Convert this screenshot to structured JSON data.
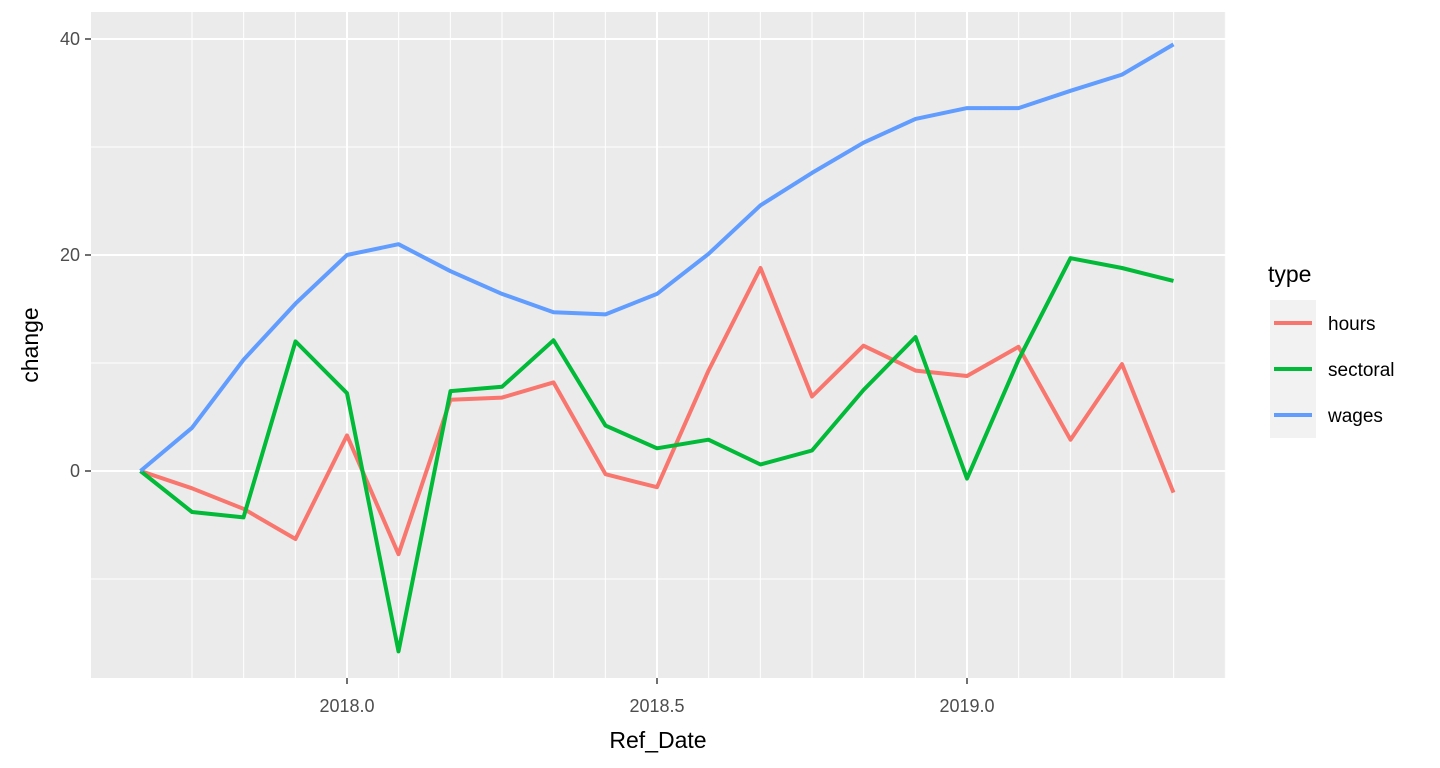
{
  "chart_data": {
    "type": "line",
    "xlabel": "Ref_Date",
    "ylabel": "change",
    "xlim": [
      17.62,
      19.43
    ],
    "ylim": [
      -19,
      43
    ],
    "xticks": [
      2018.0,
      2018.5,
      2019.0
    ],
    "xtick_labels": [
      "2018.0",
      "2018.5",
      "2019.0"
    ],
    "yticks": [
      0,
      20,
      40
    ],
    "ytick_labels": [
      "0",
      "20",
      "40"
    ],
    "grid": true,
    "background": "#ebebeb",
    "legend": {
      "title": "type",
      "position": "right",
      "entries": [
        "hours",
        "sectoral",
        "wages"
      ]
    },
    "x": [
      2017.667,
      2017.75,
      2017.833,
      2017.917,
      2018.0,
      2018.083,
      2018.167,
      2018.25,
      2018.333,
      2018.417,
      2018.5,
      2018.583,
      2018.667,
      2018.75,
      2018.833,
      2018.917,
      2019.0,
      2019.083,
      2019.167,
      2019.25,
      2019.333
    ],
    "series": [
      {
        "name": "hours",
        "color": "#f8766d",
        "values": [
          0,
          -1.6,
          -3.5,
          -6.3,
          3.3,
          -7.7,
          6.6,
          6.8,
          8.2,
          -0.3,
          -1.5,
          9.3,
          18.8,
          6.9,
          11.6,
          9.3,
          8.8,
          11.5,
          2.9,
          9.9,
          -2.0
        ]
      },
      {
        "name": "sectoral",
        "color": "#00ba38",
        "values": [
          0,
          -3.8,
          -4.3,
          12.0,
          7.2,
          -16.7,
          7.4,
          7.8,
          12.1,
          4.2,
          2.1,
          2.9,
          0.6,
          1.9,
          7.5,
          12.4,
          -0.7,
          10.3,
          19.7,
          18.8,
          17.6
        ]
      },
      {
        "name": "wages",
        "color": "#619cff",
        "values": [
          0,
          4.0,
          10.3,
          15.5,
          20.0,
          21.0,
          18.5,
          16.4,
          14.7,
          14.5,
          16.4,
          20.1,
          24.6,
          27.6,
          30.4,
          32.6,
          33.6,
          33.6,
          35.2,
          36.7,
          39.5
        ]
      }
    ]
  }
}
